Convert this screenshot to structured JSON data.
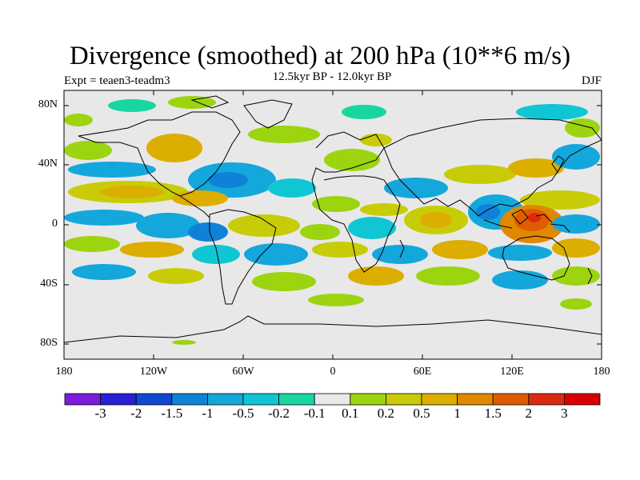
{
  "title": "Divergence (smoothed) at 200 hPa (10**6 m/s)",
  "subtitle_left": "Expt = teaen3-teadm3",
  "subtitle_center": "12.5kyr BP - 12.0kyr BP",
  "subtitle_right": "DJF",
  "y_axis_labels": [
    "80N",
    "40N",
    "0",
    "40S",
    "80S"
  ],
  "x_axis_labels": [
    "180",
    "120W",
    "60W",
    "0",
    "60E",
    "120E",
    "180"
  ],
  "colorbar": {
    "labels": [
      "-3",
      "-2",
      "-1.5",
      "-1",
      "-0.5",
      "-0.2",
      "-0.1",
      "0.1",
      "0.2",
      "0.5",
      "1",
      "1.5",
      "2",
      "3"
    ],
    "colors": [
      "#7a1cdc",
      "#2a1fd8",
      "#1048d0",
      "#0f82d8",
      "#14a7dc",
      "#10c6d4",
      "#18d6a0",
      "#e8e8e8",
      "#9cd410",
      "#c8cc06",
      "#dcae00",
      "#e08800",
      "#e05c00",
      "#dc2a10",
      "#d80000"
    ]
  },
  "colors": {
    "ocean_background": "#e8e8e8",
    "coast": "#000000"
  }
}
